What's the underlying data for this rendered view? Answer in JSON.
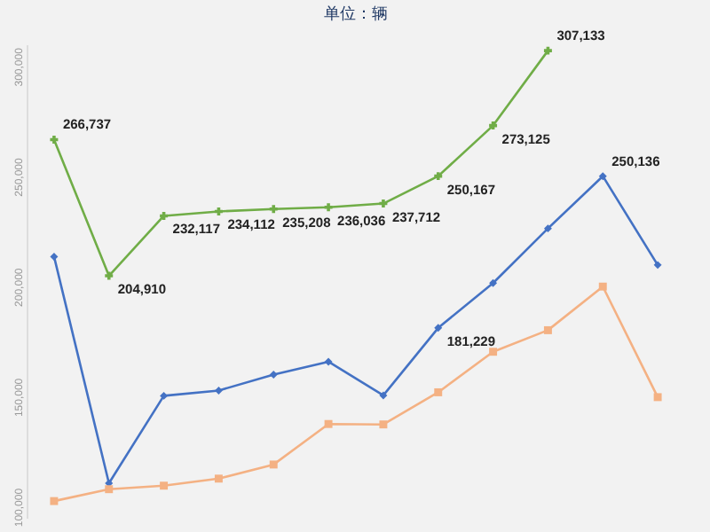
{
  "chart_data": {
    "type": "line",
    "subtitle": "单位：辆",
    "categories": [
      null,
      null,
      null,
      null,
      null,
      null,
      null,
      null,
      null,
      null,
      null,
      null
    ],
    "ylim": [
      95000,
      310000
    ],
    "yticks": [
      {
        "value": 100000,
        "label": "100,000"
      },
      {
        "value": 150000,
        "label": "150,000"
      },
      {
        "value": 200000,
        "label": "200,000"
      },
      {
        "value": 250000,
        "label": "250,000"
      },
      {
        "value": 300000,
        "label": "300,000"
      }
    ],
    "tick_labels": "y",
    "grid": false,
    "legend": false,
    "series": [
      {
        "color": "#70ad47",
        "marker": "cross",
        "values": [
          266737,
          204910,
          232117,
          234112,
          235208,
          236036,
          237712,
          250167,
          273125,
          307133,
          null,
          null
        ],
        "value_labels": [
          "266,737",
          "204,910",
          "232,117",
          "234,112",
          "235,208",
          "236,036",
          "237,712",
          "250,167",
          "273,125",
          "307,133",
          null,
          null
        ]
      },
      {
        "color": "#4472c4",
        "marker": "diamond",
        "values": [
          213600,
          110700,
          150400,
          152800,
          160000,
          165900,
          150600,
          181229,
          201600,
          226400,
          250136,
          209800
        ],
        "value_labels": [
          null,
          null,
          null,
          null,
          null,
          null,
          null,
          "181,229",
          null,
          null,
          "250,136",
          null
        ]
      },
      {
        "color": "#f4b183",
        "marker": "square",
        "values": [
          102600,
          108000,
          109600,
          112800,
          119200,
          137600,
          137400,
          152000,
          170400,
          180200,
          200000,
          149800
        ]
      }
    ]
  }
}
